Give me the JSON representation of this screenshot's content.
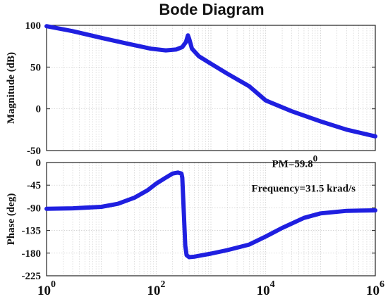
{
  "chart_data": {
    "type": "line",
    "title": "Bode Diagram",
    "xscale": "log",
    "xlim": [
      1,
      1000000
    ],
    "x_ticks": [
      {
        "value": 1,
        "base": "10",
        "exp": "0"
      },
      {
        "value": 100,
        "base": "10",
        "exp": "2"
      },
      {
        "value": 10000,
        "base": "10",
        "exp": "4"
      },
      {
        "value": 1000000,
        "base": "10",
        "exp": "6"
      }
    ],
    "grid": true,
    "line_color": "#1f1fe0",
    "panels": [
      {
        "name": "magnitude",
        "ylabel": "Magnitude (dB)",
        "ylim": [
          -50,
          100
        ],
        "yticks": [
          100,
          50,
          0,
          -50
        ],
        "ytick_labels": [
          "100",
          "50",
          "0",
          "-50"
        ],
        "series": [
          {
            "x": [
              1,
              3,
              10,
              30,
              80,
              150,
              230,
              300,
              350,
              380,
              400,
              450,
              600,
              1000,
              2000,
              5000,
              10000,
              30000,
              100000,
              300000,
              1000000
            ],
            "y": [
              99,
              93,
              85,
              78,
              72,
              70,
              71,
              74,
              80,
              88,
              84,
              72,
              63,
              54,
              42,
              27,
              10,
              -3,
              -15,
              -25,
              -33
            ]
          }
        ]
      },
      {
        "name": "phase",
        "ylabel": "Phase (deg)",
        "ylim": [
          -225,
          0
        ],
        "yticks": [
          0,
          -45,
          -90,
          -135,
          -180,
          -225
        ],
        "ytick_labels": [
          "0",
          "-45",
          "-90",
          "-135",
          "-180",
          "-225"
        ],
        "annotations": [
          {
            "text": "PM=59.8",
            "sup": "0",
            "x": 13000,
            "y": -9
          },
          {
            "text": "Frequency=31.5 krad/s",
            "x": 5500,
            "y": -58
          }
        ],
        "series": [
          {
            "x": [
              1,
              3,
              10,
              20,
              40,
              70,
              100,
              150,
              200,
              250,
              290,
              300,
              320,
              340,
              360,
              400,
              500,
              700,
              1000,
              2000,
              5000,
              10000,
              20000,
              50000,
              100000,
              300000,
              1000000
            ],
            "y": [
              -92,
              -91,
              -88,
              -82,
              -70,
              -55,
              -42,
              -30,
              -22,
              -20,
              -22,
              -30,
              -100,
              -165,
              -184,
              -188,
              -187,
              -184,
              -181,
              -174,
              -163,
              -147,
              -130,
              -110,
              -101,
              -96,
              -95
            ]
          }
        ]
      }
    ]
  }
}
